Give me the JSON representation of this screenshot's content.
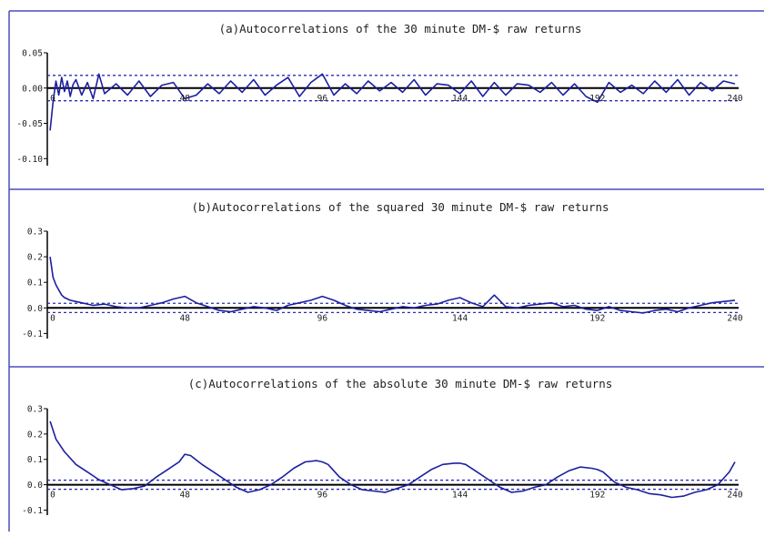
{
  "colors": {
    "series": "#1c1fa0",
    "border": "#4a4dc0",
    "zero": "#000000",
    "band": "#2a2db8"
  },
  "chart_data": [
    {
      "type": "line",
      "title": "(a)Autocorrelations of the 30 minute DM-$ raw returns",
      "xlim": [
        0,
        240
      ],
      "ylim": [
        -0.11,
        0.05
      ],
      "yticks": [
        0.05,
        0.0,
        -0.05,
        -0.1
      ],
      "ytick_labels": [
        "0.05",
        "0.00",
        "-0.05",
        "-0.10"
      ],
      "xticks": [
        0,
        48,
        96,
        144,
        192,
        240
      ],
      "xtick_labels": [
        "0",
        "48",
        "96",
        "144",
        "192",
        "240"
      ],
      "confidence_band": 0.018,
      "series": [
        {
          "x": [
            1,
            2,
            3,
            4,
            5,
            6,
            7,
            8,
            9,
            10,
            12,
            14,
            16,
            18,
            20,
            24,
            28,
            32,
            36,
            40,
            44,
            48,
            52,
            56,
            60,
            64,
            68,
            72,
            76,
            80,
            84,
            88,
            92,
            96,
            100,
            104,
            108,
            112,
            116,
            120,
            124,
            128,
            132,
            136,
            140,
            144,
            148,
            152,
            156,
            160,
            164,
            168,
            172,
            176,
            180,
            184,
            188,
            192,
            196,
            200,
            204,
            208,
            212,
            216,
            220,
            224,
            228,
            232,
            236,
            240
          ],
          "values": [
            -0.06,
            -0.02,
            0.01,
            -0.01,
            0.015,
            -0.005,
            0.01,
            -0.012,
            0.005,
            0.012,
            -0.01,
            0.008,
            -0.015,
            0.02,
            -0.008,
            0.006,
            -0.01,
            0.01,
            -0.012,
            0.004,
            0.008,
            -0.015,
            -0.01,
            0.006,
            -0.008,
            0.01,
            -0.006,
            0.012,
            -0.01,
            0.004,
            0.015,
            -0.012,
            0.008,
            0.02,
            -0.01,
            0.006,
            -0.008,
            0.01,
            -0.004,
            0.008,
            -0.006,
            0.012,
            -0.01,
            0.006,
            0.004,
            -0.008,
            0.01,
            -0.012,
            0.008,
            -0.01,
            0.006,
            0.004,
            -0.006,
            0.008,
            -0.01,
            0.006,
            -0.012,
            -0.02,
            0.008,
            -0.006,
            0.004,
            -0.008,
            0.01,
            -0.006,
            0.012,
            -0.01,
            0.008,
            -0.004,
            0.01,
            0.006
          ]
        }
      ]
    },
    {
      "type": "line",
      "title": "(b)Autocorrelations of the squared 30 minute DM-$ raw returns",
      "xlim": [
        0,
        240
      ],
      "ylim": [
        -0.12,
        0.3
      ],
      "yticks": [
        0.3,
        0.2,
        0.1,
        0.0,
        -0.1
      ],
      "ytick_labels": [
        "0.3",
        "0.2",
        "0.1",
        "0.0",
        "-0.1"
      ],
      "xticks": [
        0,
        48,
        96,
        144,
        192,
        240
      ],
      "xtick_labels": [
        "0",
        "48",
        "96",
        "144",
        "192",
        "240"
      ],
      "confidence_band": 0.018,
      "series": [
        {
          "x": [
            1,
            2,
            3,
            4,
            5,
            6,
            8,
            10,
            12,
            14,
            16,
            20,
            24,
            28,
            32,
            36,
            40,
            44,
            48,
            52,
            56,
            60,
            64,
            68,
            72,
            76,
            80,
            84,
            88,
            92,
            96,
            100,
            104,
            108,
            112,
            116,
            120,
            124,
            128,
            132,
            136,
            140,
            144,
            148,
            152,
            156,
            160,
            164,
            168,
            172,
            176,
            180,
            184,
            188,
            192,
            196,
            200,
            204,
            208,
            212,
            216,
            220,
            224,
            228,
            232,
            236,
            240
          ],
          "values": [
            0.2,
            0.12,
            0.09,
            0.07,
            0.05,
            0.04,
            0.03,
            0.025,
            0.02,
            0.015,
            0.01,
            0.015,
            0.005,
            0.0,
            0.0,
            0.01,
            0.02,
            0.035,
            0.045,
            0.02,
            0.005,
            -0.01,
            -0.015,
            -0.005,
            0.005,
            0.0,
            -0.01,
            0.01,
            0.02,
            0.03,
            0.045,
            0.03,
            0.01,
            -0.005,
            -0.01,
            -0.015,
            -0.005,
            0.005,
            0.0,
            0.01,
            0.015,
            0.03,
            0.04,
            0.02,
            0.005,
            0.05,
            0.005,
            0.0,
            0.01,
            0.015,
            0.02,
            0.005,
            0.01,
            -0.005,
            -0.01,
            0.005,
            -0.01,
            -0.015,
            -0.02,
            -0.01,
            -0.005,
            -0.015,
            0.0,
            0.01,
            0.02,
            0.025,
            0.03
          ]
        }
      ]
    },
    {
      "type": "line",
      "title": "(c)Autocorrelations of the absolute 30 minute DM-$ raw returns",
      "xlim": [
        0,
        240
      ],
      "ylim": [
        -0.12,
        0.3
      ],
      "yticks": [
        0.3,
        0.2,
        0.1,
        0.0,
        -0.1
      ],
      "ytick_labels": [
        "0.3",
        "0.2",
        "0.1",
        "0.0",
        "-0.1"
      ],
      "xticks": [
        0,
        48,
        96,
        144,
        192,
        240
      ],
      "xtick_labels": [
        "0",
        "48",
        "96",
        "144",
        "192",
        "240"
      ],
      "confidence_band": 0.018,
      "series": [
        {
          "x": [
            1,
            3,
            6,
            10,
            14,
            18,
            22,
            26,
            30,
            34,
            38,
            42,
            46,
            48,
            50,
            54,
            58,
            62,
            66,
            70,
            74,
            78,
            82,
            86,
            90,
            94,
            96,
            98,
            102,
            106,
            110,
            114,
            118,
            122,
            126,
            130,
            134,
            138,
            142,
            144,
            146,
            150,
            154,
            158,
            162,
            166,
            170,
            174,
            178,
            182,
            186,
            190,
            192,
            194,
            198,
            202,
            206,
            210,
            214,
            218,
            222,
            226,
            230,
            234,
            238,
            240
          ],
          "values": [
            0.25,
            0.18,
            0.13,
            0.08,
            0.05,
            0.02,
            0.0,
            -0.02,
            -0.015,
            -0.005,
            0.03,
            0.06,
            0.09,
            0.12,
            0.115,
            0.08,
            0.05,
            0.02,
            -0.01,
            -0.03,
            -0.02,
            0.0,
            0.03,
            0.065,
            0.09,
            0.095,
            0.09,
            0.08,
            0.03,
            0.0,
            -0.02,
            -0.025,
            -0.03,
            -0.015,
            0.0,
            0.03,
            0.06,
            0.08,
            0.085,
            0.085,
            0.08,
            0.05,
            0.02,
            -0.01,
            -0.03,
            -0.025,
            -0.01,
            0.0,
            0.03,
            0.055,
            0.07,
            0.065,
            0.06,
            0.05,
            0.01,
            -0.01,
            -0.02,
            -0.035,
            -0.04,
            -0.05,
            -0.045,
            -0.03,
            -0.02,
            0.0,
            0.05,
            0.09
          ]
        }
      ]
    }
  ]
}
